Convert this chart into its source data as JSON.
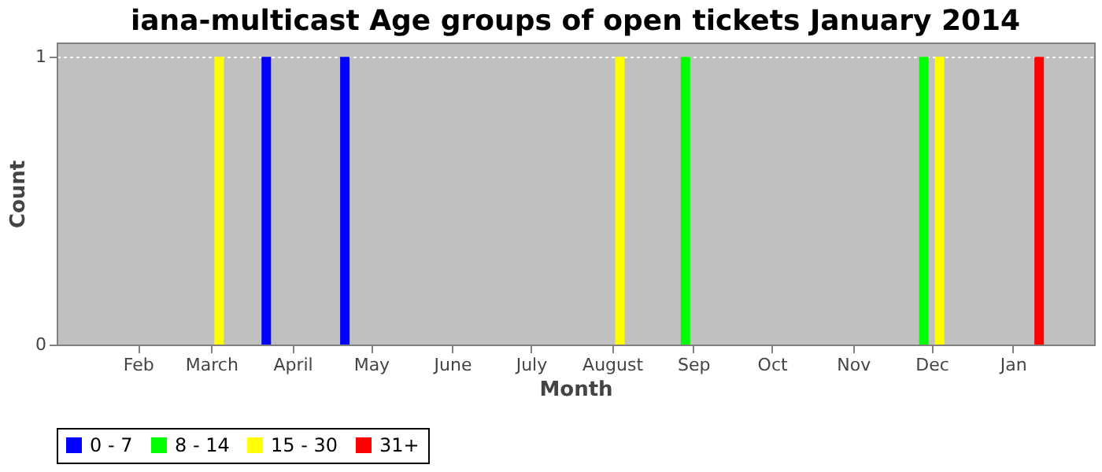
{
  "chart_data": {
    "type": "bar",
    "title": "iana-multicast Age groups of open tickets January 2014",
    "xlabel": "Month",
    "ylabel": "Count",
    "xlim": [
      "2013-01-01",
      "2014-02-01"
    ],
    "xticks": [
      {
        "value": "2013-02-01",
        "label": "Feb"
      },
      {
        "value": "2013-03-01",
        "label": "March"
      },
      {
        "value": "2013-04-01",
        "label": "April"
      },
      {
        "value": "2013-05-01",
        "label": "May"
      },
      {
        "value": "2013-06-01",
        "label": "June"
      },
      {
        "value": "2013-07-01",
        "label": "July"
      },
      {
        "value": "2013-08-01",
        "label": "August"
      },
      {
        "value": "2013-09-01",
        "label": "Sep"
      },
      {
        "value": "2013-10-01",
        "label": "Oct"
      },
      {
        "value": "2013-11-01",
        "label": "Nov"
      },
      {
        "value": "2013-12-01",
        "label": "Dec"
      },
      {
        "value": "2014-01-01",
        "label": "Jan"
      }
    ],
    "ylim": [
      0,
      1.05
    ],
    "yticks": [
      0,
      1
    ],
    "grid": "y",
    "legend": "bottom",
    "series": [
      {
        "name": "0 - 7",
        "color": "#0000ff",
        "x": [
          "2013-03-22",
          "2013-04-21"
        ],
        "values": [
          1,
          1
        ]
      },
      {
        "name": "8 - 14",
        "color": "#00ff00",
        "x": [
          "2013-08-29",
          "2013-11-28"
        ],
        "values": [
          1,
          1
        ]
      },
      {
        "name": "15 - 30",
        "color": "#ffff00",
        "x": [
          "2013-03-04",
          "2013-08-04",
          "2013-12-04"
        ],
        "values": [
          1,
          1,
          1
        ]
      },
      {
        "name": "31+",
        "color": "#ff0000",
        "x": [
          "2014-01-11"
        ],
        "values": [
          1
        ]
      }
    ]
  }
}
